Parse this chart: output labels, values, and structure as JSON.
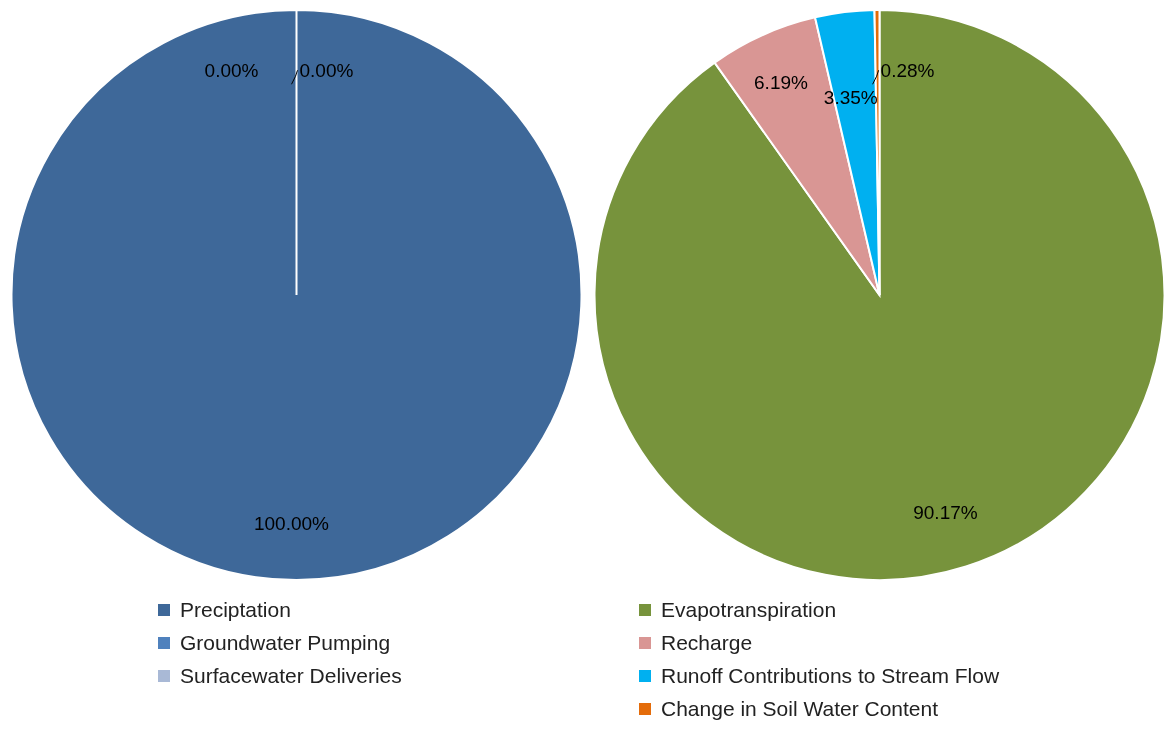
{
  "chart_data": [
    {
      "type": "pie",
      "categories": [
        "Preciptation",
        "Groundwater Pumping",
        "Surfacewater Deliveries"
      ],
      "values": [
        100,
        0,
        0
      ],
      "colors": [
        "#3e6899",
        "#4f81bd",
        "#a9b9d6"
      ],
      "value_labels": [
        "100.00%",
        "0.00%",
        "0.00%"
      ],
      "legend": "bottom"
    },
    {
      "type": "pie",
      "categories": [
        "Evapotranspiration",
        "Recharge",
        "Runoff Contributions to Stream Flow",
        "Change in Soil Water Content"
      ],
      "values": [
        90.17,
        6.19,
        3.35,
        0.28
      ],
      "colors": [
        "#77933c",
        "#d99694",
        "#00b0f0",
        "#e46c0a"
      ],
      "value_labels": [
        "90.17%",
        "6.19%",
        "3.35%",
        "0.28%"
      ],
      "legend": "bottom"
    }
  ]
}
